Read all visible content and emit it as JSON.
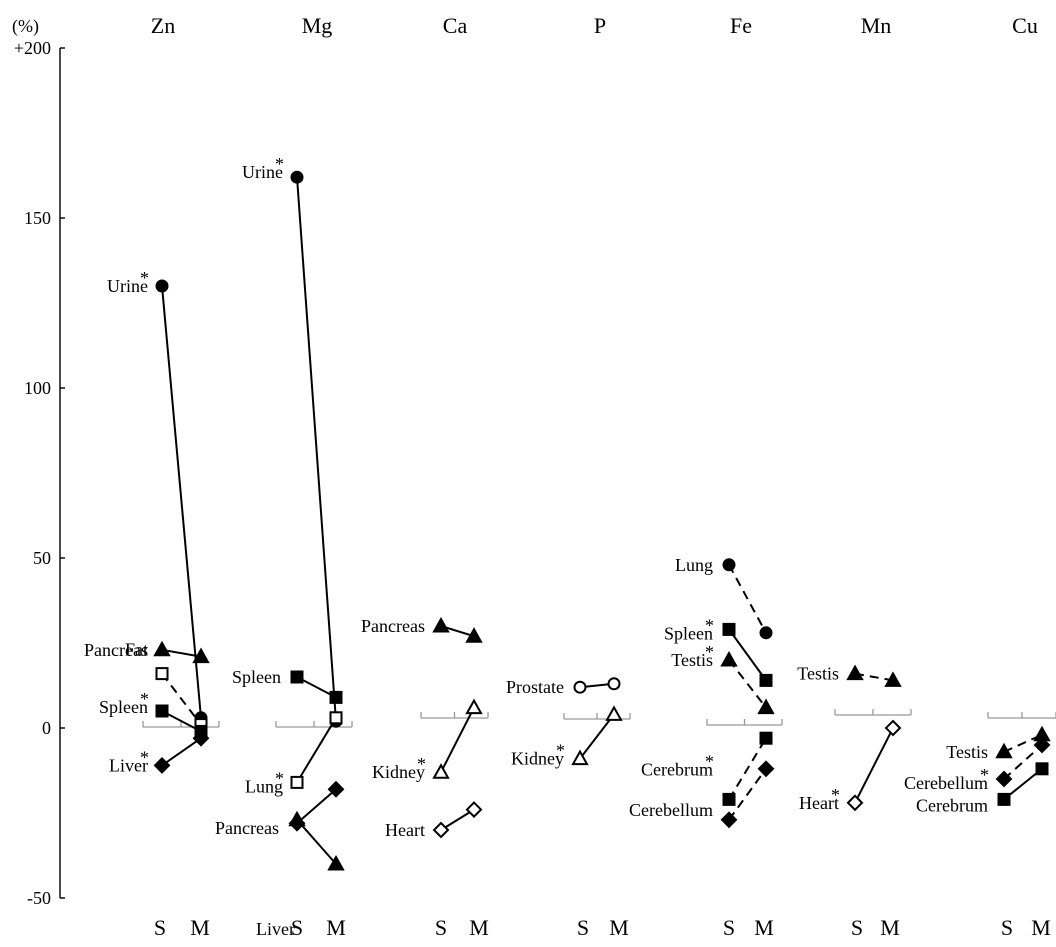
{
  "chart_data": {
    "type": "line",
    "unit_label": "(%)",
    "y_ticks": [
      "+200",
      "150",
      "100",
      "50",
      "0",
      "-50"
    ],
    "y_tick_values": [
      200,
      150,
      100,
      50,
      0,
      -50
    ],
    "ylim": [
      -50,
      200
    ],
    "x_categories": [
      "S",
      "M"
    ],
    "asterisk": "*",
    "grid": false,
    "panels": [
      {
        "element": "Zn",
        "series": [
          {
            "label": "Urine",
            "marker": "circle",
            "filled": true,
            "dash": false,
            "sig": true,
            "values": [
              130,
              3
            ]
          },
          {
            "label": "Pancreas",
            "marker": "triangle",
            "filled": true,
            "dash": false,
            "sig": false,
            "values": [
              23,
              21
            ]
          },
          {
            "label": "Fat",
            "marker": "square",
            "filled": false,
            "dash": true,
            "sig": false,
            "values": [
              16,
              1
            ]
          },
          {
            "label": "Spleen",
            "marker": "square",
            "filled": true,
            "dash": false,
            "sig": true,
            "values": [
              5,
              -1
            ]
          },
          {
            "label": "Liver",
            "marker": "diamond",
            "filled": true,
            "dash": false,
            "sig": true,
            "values": [
              -11,
              -3
            ]
          }
        ]
      },
      {
        "element": "Mg",
        "series": [
          {
            "label": "Urine",
            "marker": "circle",
            "filled": true,
            "dash": false,
            "sig": true,
            "values": [
              162,
              2
            ]
          },
          {
            "label": "Spleen",
            "marker": "square",
            "filled": true,
            "dash": false,
            "sig": false,
            "values": [
              15,
              9
            ]
          },
          {
            "label": "Lung",
            "marker": "square",
            "filled": false,
            "dash": false,
            "sig": true,
            "values": [
              -16,
              3
            ]
          },
          {
            "label": "Liver",
            "marker": "diamond",
            "filled": true,
            "dash": false,
            "sig": false,
            "values": [
              -28,
              -18
            ]
          },
          {
            "label": "Pancreas",
            "marker": "triangle",
            "filled": true,
            "dash": false,
            "sig": false,
            "values": [
              -27,
              -40
            ]
          }
        ]
      },
      {
        "element": "Ca",
        "series": [
          {
            "label": "Pancreas",
            "marker": "triangle",
            "filled": true,
            "dash": false,
            "sig": false,
            "values": [
              30,
              27
            ]
          },
          {
            "label": "Kidney",
            "marker": "triangle",
            "filled": false,
            "dash": false,
            "sig": true,
            "values": [
              -13,
              6
            ]
          },
          {
            "label": "Heart",
            "marker": "diamond",
            "filled": false,
            "dash": false,
            "sig": false,
            "values": [
              -30,
              -24
            ]
          }
        ]
      },
      {
        "element": "P",
        "series": [
          {
            "label": "Prostate",
            "marker": "circle",
            "filled": false,
            "dash": false,
            "sig": false,
            "values": [
              12,
              13
            ]
          },
          {
            "label": "Kidney",
            "marker": "triangle",
            "filled": false,
            "dash": false,
            "sig": true,
            "values": [
              -9,
              4
            ]
          }
        ]
      },
      {
        "element": "Fe",
        "series": [
          {
            "label": "Lung",
            "marker": "circle",
            "filled": true,
            "dash": true,
            "sig": false,
            "values": [
              48,
              28
            ]
          },
          {
            "label": "Spleen",
            "marker": "square",
            "filled": true,
            "dash": false,
            "sig": true,
            "values": [
              29,
              14
            ]
          },
          {
            "label": "Testis",
            "marker": "triangle",
            "filled": true,
            "dash": true,
            "sig": true,
            "values": [
              20,
              6
            ]
          },
          {
            "label": "Cerebrum",
            "marker": "square",
            "filled": true,
            "dash": true,
            "sig": true,
            "values": [
              -21,
              -3
            ]
          },
          {
            "label": "Cerebellum",
            "marker": "diamond",
            "filled": true,
            "dash": true,
            "sig": false,
            "values": [
              -27,
              -12
            ]
          }
        ]
      },
      {
        "element": "Mn",
        "series": [
          {
            "label": "Testis",
            "marker": "triangle",
            "filled": true,
            "dash": true,
            "sig": false,
            "values": [
              16,
              14
            ]
          },
          {
            "label": "Heart",
            "marker": "diamond",
            "filled": false,
            "dash": false,
            "sig": true,
            "values": [
              -22,
              0
            ]
          }
        ]
      },
      {
        "element": "Cu",
        "series": [
          {
            "label": "Testis",
            "marker": "triangle",
            "filled": true,
            "dash": true,
            "sig": false,
            "values": [
              -7,
              -2
            ]
          },
          {
            "label": "Cerebellum",
            "marker": "diamond",
            "filled": true,
            "dash": true,
            "sig": true,
            "values": [
              -15,
              -5
            ]
          },
          {
            "label": "Cerebrum",
            "marker": "square",
            "filled": true,
            "dash": false,
            "sig": false,
            "values": [
              -21,
              -12
            ]
          }
        ]
      }
    ]
  }
}
